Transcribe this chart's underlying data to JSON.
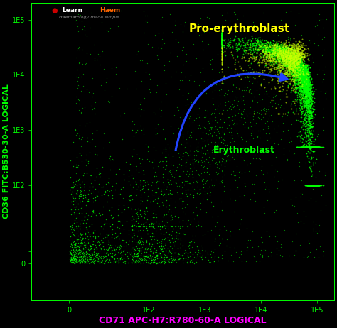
{
  "background_color": "#000000",
  "plot_bg_color": "#000000",
  "dot_color": "#00ff00",
  "dot_size": 1.5,
  "xlabel": "CD71 APC-H7:R780-60-A LOGICAL",
  "ylabel": "CD36 FITC:B530-30-A LOGICAL",
  "xlabel_color": "#ff00ff",
  "ylabel_color": "#00ff00",
  "xlabel_fontsize": 9,
  "ylabel_fontsize": 8,
  "tick_labels_x": [
    "0",
    "1E2",
    "1E3",
    "1E4",
    "1E5"
  ],
  "tick_labels_y": [
    "0",
    "1E2",
    "1E3",
    "1E4",
    "1E5"
  ],
  "tick_color": "#00ff00",
  "tick_fontsize": 7,
  "label_pro_erythroblast": "Pro-erythroblast",
  "label_erythroblast": "Erythroblast",
  "label_pro_color": "#ffff00",
  "label_ery_color": "#00ff00",
  "arrow_color": "#2244ff",
  "logo_dot_color": "#cc0000",
  "logo_learn_color": "#ffffff",
  "logo_haem_color": "#ff6600",
  "logo_subtitle_color": "#888888",
  "seed": 42
}
